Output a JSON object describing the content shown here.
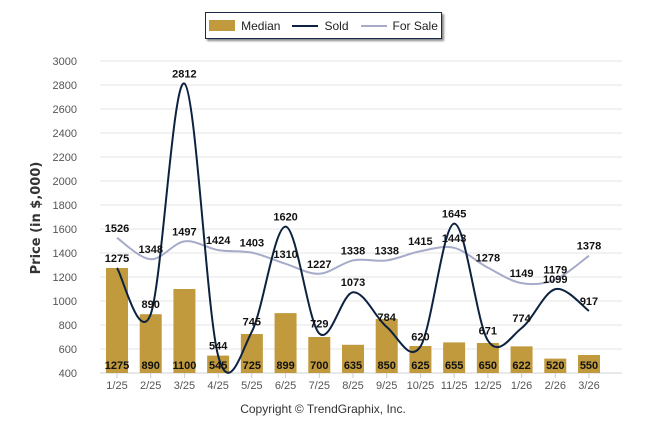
{
  "chart_data": {
    "type": "bar",
    "title": "",
    "xlabel": "",
    "ylabel": "Price (in $,000)",
    "ylim": [
      400,
      3000
    ],
    "yticks": [
      400,
      600,
      800,
      1000,
      1200,
      1400,
      1600,
      1800,
      2000,
      2200,
      2400,
      2600,
      2800,
      3000
    ],
    "grid": true,
    "legend_position": "top-center",
    "categories": [
      "1/25",
      "2/25",
      "3/25",
      "4/25",
      "5/25",
      "6/25",
      "7/25",
      "8/25",
      "9/25",
      "10/25",
      "11/25",
      "12/25",
      "1/26",
      "2/26",
      "3/26"
    ],
    "series": [
      {
        "name": "Median",
        "type": "bar",
        "color": "#c19a3e",
        "values": [
          1275,
          890,
          1100,
          545,
          725,
          899,
          700,
          635,
          850,
          625,
          655,
          650,
          622,
          520,
          550
        ]
      },
      {
        "name": "Sold",
        "type": "line",
        "color": "#0d2240",
        "values": [
          1275,
          890,
          2812,
          544,
          745,
          1620,
          729,
          1073,
          784,
          620,
          1645,
          671,
          774,
          1099,
          917
        ]
      },
      {
        "name": "For Sale",
        "type": "line",
        "color": "#a5abc9",
        "values": [
          1526,
          1348,
          1497,
          1424,
          1403,
          1310,
          1227,
          1338,
          1338,
          1415,
          1443,
          1278,
          1149,
          1179,
          1378
        ]
      }
    ]
  },
  "legend": {
    "items": [
      {
        "label": "Median"
      },
      {
        "label": "Sold"
      },
      {
        "label": "For Sale"
      }
    ]
  },
  "footer": {
    "copyright": "Copyright © TrendGraphix, Inc."
  }
}
